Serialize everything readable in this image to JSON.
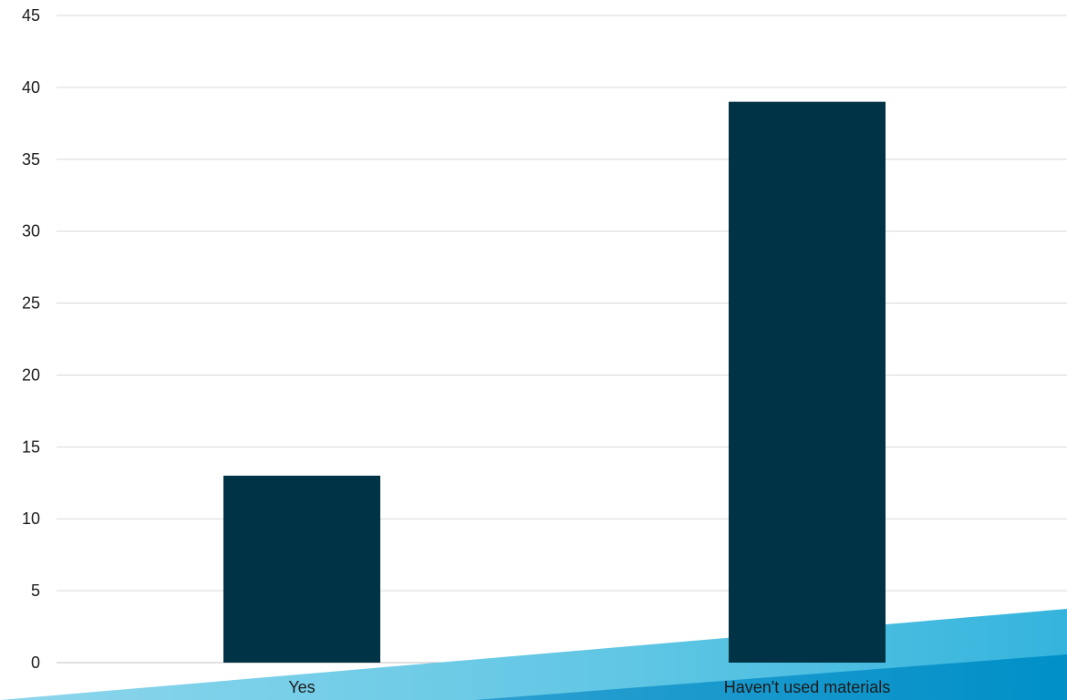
{
  "chart_data": {
    "type": "bar",
    "categories": [
      "Yes",
      "Haven't used materials"
    ],
    "values": [
      13,
      39
    ],
    "title": "",
    "xlabel": "",
    "ylabel": "",
    "ylim": [
      0,
      45
    ],
    "yticks": [
      0,
      5,
      10,
      15,
      20,
      25,
      30,
      35,
      40,
      45
    ],
    "grid": true,
    "legend": "none",
    "colors": {
      "bar": "#003345",
      "grid": "#d9d9d9",
      "decor_light": "#66cbe6",
      "decor_mid": "#2aa9d6",
      "decor_dark": "#0091c7"
    }
  }
}
